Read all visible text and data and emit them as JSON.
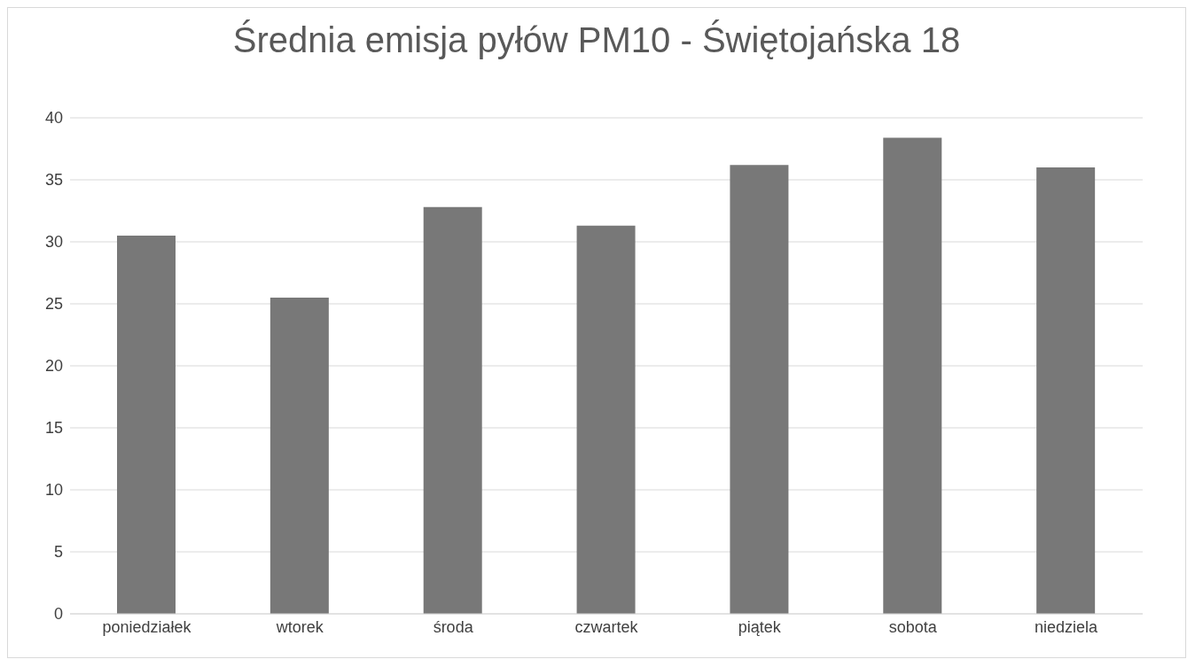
{
  "chart_data": {
    "type": "bar",
    "title": "Średnia emisja pyłów PM10  - Świętojańska 18",
    "categories": [
      "poniedziałek",
      "wtorek",
      "środa",
      "czwartek",
      "piątek",
      "sobota",
      "niedziela"
    ],
    "values": [
      30.5,
      25.5,
      32.8,
      31.3,
      36.2,
      38.4,
      36.0
    ],
    "color": "#787878",
    "ylim": [
      0,
      40
    ],
    "yticks": [
      0,
      5,
      10,
      15,
      20,
      25,
      30,
      35,
      40
    ],
    "grid": "y"
  }
}
